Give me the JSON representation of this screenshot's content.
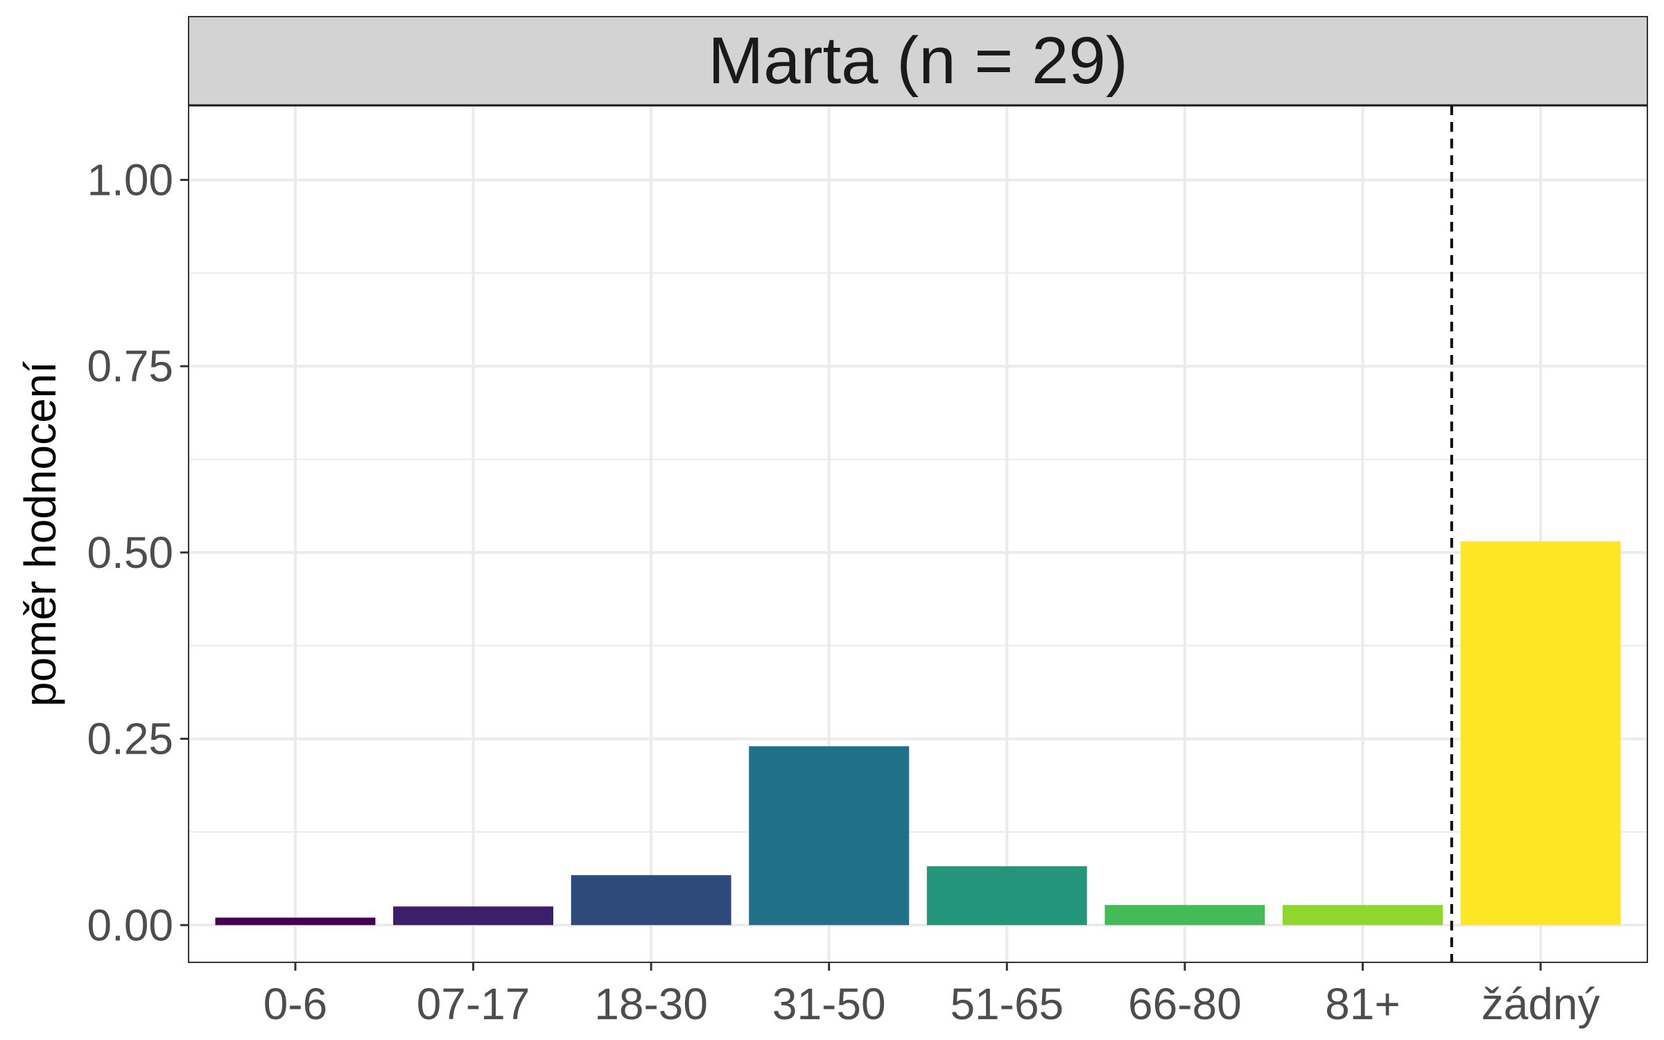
{
  "chart_data": {
    "type": "bar",
    "facet_title": "Marta (n = 29)",
    "ylabel": "poměr hodnocení",
    "xlabel": "",
    "categories": [
      "0-6",
      "07-17",
      "18-30",
      "31-50",
      "51-65",
      "66-80",
      "81+",
      "žádný"
    ],
    "values": [
      0.01,
      0.025,
      0.067,
      0.24,
      0.079,
      0.027,
      0.027,
      0.515
    ],
    "colors": [
      "#440154",
      "#3B1F6B",
      "#2E4A7D",
      "#21708A",
      "#22957B",
      "#43BB56",
      "#8FD72E",
      "#FDE725"
    ],
    "ylim": [
      -0.05,
      1.1
    ],
    "yticks": [
      0.0,
      0.25,
      0.5,
      0.75,
      1.0
    ],
    "ytick_labels": [
      "0.00",
      "0.25",
      "0.50",
      "0.75",
      "1.00"
    ],
    "grid": true,
    "separator": {
      "after_category": "81+",
      "style": "dashed"
    }
  }
}
